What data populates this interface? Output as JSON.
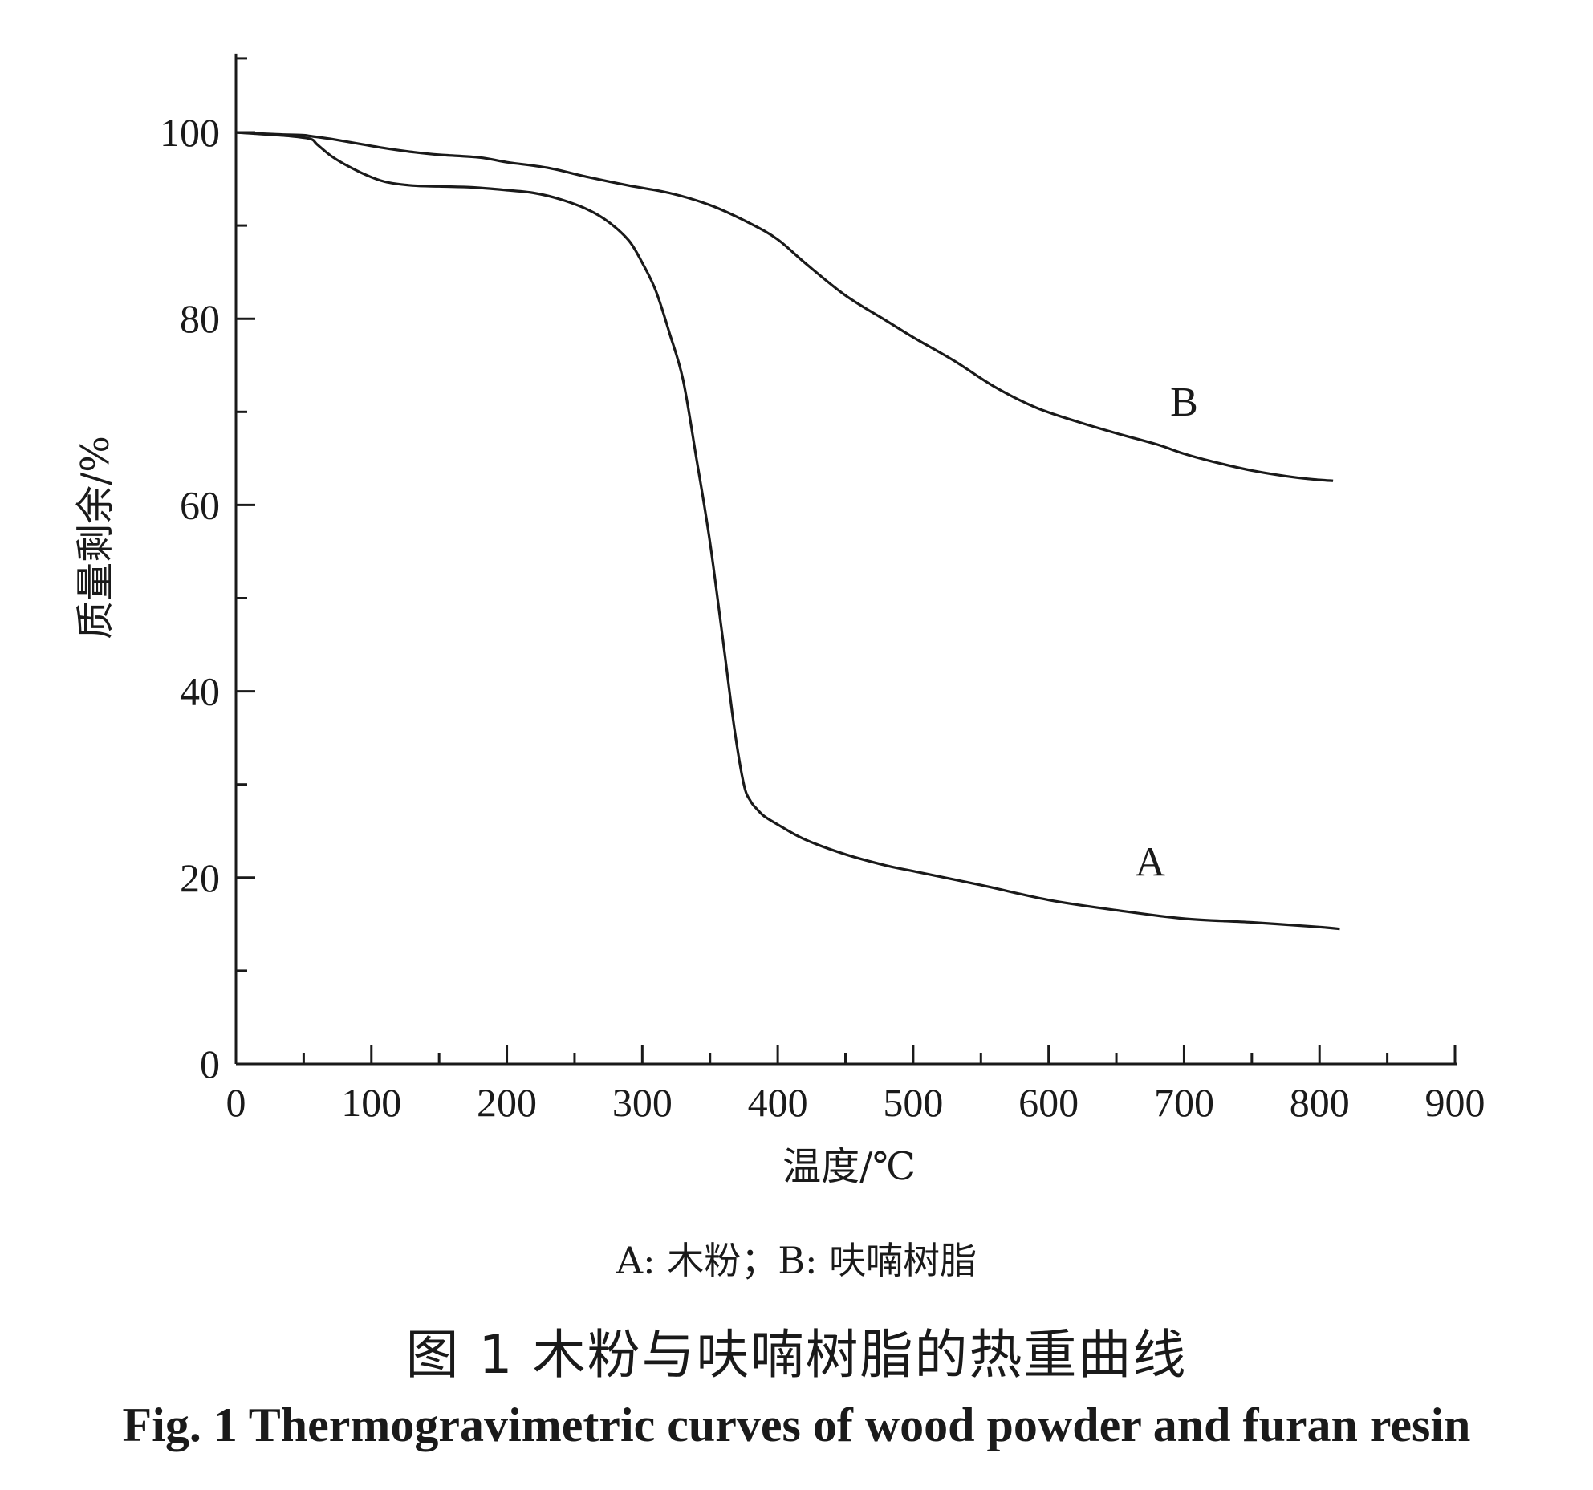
{
  "chart_data": {
    "type": "line",
    "xlabel": "温度/℃",
    "ylabel": "质量剩余/%",
    "xlim": [
      0,
      900
    ],
    "ylim": [
      0,
      110
    ],
    "x_ticks": [
      0,
      100,
      200,
      300,
      400,
      500,
      600,
      700,
      800,
      900
    ],
    "y_ticks": [
      0,
      20,
      40,
      60,
      80,
      100
    ],
    "x_minor_step": 50,
    "y_minor_step": 10,
    "grid": false,
    "series": [
      {
        "name": "A",
        "label_at": [
          675,
          20.2
        ],
        "x": [
          0,
          20,
          40,
          55,
          60,
          70,
          80,
          95,
          110,
          130,
          150,
          175,
          200,
          220,
          240,
          260,
          275,
          290,
          300,
          310,
          320,
          330,
          340,
          350,
          360,
          368,
          375,
          380,
          385,
          390,
          400,
          420,
          450,
          480,
          500,
          550,
          600,
          650,
          700,
          750,
          800,
          815
        ],
        "values": [
          100,
          99.8,
          99.6,
          99.3,
          98.7,
          97.5,
          96.6,
          95.5,
          94.7,
          94.3,
          94.2,
          94.1,
          93.8,
          93.5,
          92.8,
          91.7,
          90.4,
          88.4,
          86.0,
          83.0,
          78.5,
          73.5,
          65.0,
          56.0,
          45.0,
          36.0,
          30.0,
          28.2,
          27.3,
          26.6,
          25.7,
          24.1,
          22.5,
          21.3,
          20.7,
          19.2,
          17.6,
          16.5,
          15.6,
          15.2,
          14.7,
          14.5
        ]
      },
      {
        "name": "B",
        "label_at": [
          700,
          69.6
        ],
        "x": [
          0,
          30,
          50,
          55,
          70,
          90,
          110,
          130,
          150,
          180,
          200,
          230,
          260,
          290,
          320,
          350,
          380,
          400,
          420,
          450,
          480,
          500,
          530,
          560,
          590,
          620,
          650,
          680,
          700,
          720,
          750,
          780,
          800,
          810
        ],
        "values": [
          100,
          99.8,
          99.7,
          99.6,
          99.3,
          98.8,
          98.3,
          97.9,
          97.6,
          97.3,
          96.8,
          96.2,
          95.2,
          94.3,
          93.5,
          92.2,
          90.2,
          88.5,
          86.0,
          82.5,
          79.8,
          78.0,
          75.5,
          72.7,
          70.5,
          69.0,
          67.7,
          66.5,
          65.5,
          64.7,
          63.7,
          63.0,
          62.7,
          62.6
        ]
      }
    ]
  },
  "caption": {
    "legend": "A: 木粉；B: 呋喃树脂",
    "title_zh": "图 1   木粉与呋喃树脂的热重曲线",
    "title_en": "Fig. 1   Thermogravimetric curves of wood powder and furan resin"
  }
}
